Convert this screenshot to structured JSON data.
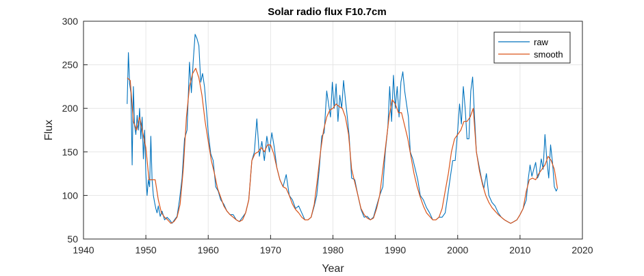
{
  "chart_data": {
    "type": "line",
    "title": "Solar radio flux F10.7cm",
    "xlabel": "Year",
    "ylabel": "Flux",
    "xlim": [
      1940,
      2020
    ],
    "ylim": [
      50,
      300
    ],
    "xticks": [
      "1940",
      "1950",
      "1960",
      "1970",
      "1980",
      "1990",
      "2000",
      "2010",
      "2020"
    ],
    "yticks": [
      "50",
      "100",
      "150",
      "200",
      "250",
      "300"
    ],
    "grid": true,
    "legend_position": "top-right",
    "series": [
      {
        "name": "raw",
        "color": "#0072BD",
        "x": [
          1947.0,
          1947.2,
          1947.4,
          1947.6,
          1947.8,
          1948.0,
          1948.2,
          1948.4,
          1948.6,
          1948.8,
          1949.0,
          1949.2,
          1949.4,
          1949.6,
          1949.8,
          1950.0,
          1950.2,
          1950.4,
          1950.6,
          1950.8,
          1951.0,
          1951.2,
          1951.4,
          1951.6,
          1951.8,
          1952.0,
          1952.3,
          1952.6,
          1953.0,
          1953.4,
          1953.8,
          1954.2,
          1954.6,
          1955.0,
          1955.4,
          1955.8,
          1956.2,
          1956.6,
          1957.0,
          1957.3,
          1957.6,
          1957.9,
          1958.2,
          1958.5,
          1958.8,
          1959.1,
          1959.4,
          1959.7,
          1960.0,
          1960.4,
          1960.8,
          1961.2,
          1961.6,
          1962.0,
          1962.5,
          1963.0,
          1963.5,
          1964.0,
          1964.5,
          1965.0,
          1965.5,
          1966.0,
          1966.5,
          1967.0,
          1967.4,
          1967.8,
          1968.2,
          1968.6,
          1969.0,
          1969.4,
          1969.8,
          1970.2,
          1970.6,
          1971.0,
          1971.5,
          1972.0,
          1972.5,
          1973.0,
          1973.5,
          1974.0,
          1974.5,
          1975.0,
          1975.5,
          1976.0,
          1976.5,
          1977.0,
          1977.4,
          1977.8,
          1978.2,
          1978.6,
          1979.0,
          1979.3,
          1979.6,
          1979.9,
          1980.2,
          1980.5,
          1980.8,
          1981.1,
          1981.4,
          1981.7,
          1982.0,
          1982.3,
          1982.6,
          1983.0,
          1983.5,
          1984.0,
          1984.5,
          1985.0,
          1985.5,
          1986.0,
          1986.5,
          1987.0,
          1987.5,
          1988.0,
          1988.4,
          1988.8,
          1989.1,
          1989.4,
          1989.7,
          1990.0,
          1990.3,
          1990.6,
          1990.9,
          1991.2,
          1991.5,
          1991.8,
          1992.1,
          1992.4,
          1992.8,
          1993.2,
          1993.6,
          1994.0,
          1994.5,
          1995.0,
          1995.5,
          1996.0,
          1996.5,
          1997.0,
          1997.5,
          1998.0,
          1998.4,
          1998.8,
          1999.2,
          1999.6,
          2000.0,
          2000.3,
          2000.6,
          2000.9,
          2001.2,
          2001.5,
          2001.8,
          2002.1,
          2002.4,
          2002.7,
          2003.0,
          2003.4,
          2003.8,
          2004.2,
          2004.6,
          2005.0,
          2005.5,
          2006.0,
          2006.5,
          2007.0,
          2007.5,
          2008.0,
          2008.5,
          2009.0,
          2009.5,
          2010.0,
          2010.5,
          2011.0,
          2011.3,
          2011.6,
          2011.9,
          2012.2,
          2012.5,
          2012.8,
          2013.1,
          2013.4,
          2013.7,
          2014.0,
          2014.3,
          2014.6,
          2014.9,
          2015.2,
          2015.5,
          2015.8,
          2016.0
        ],
        "y": [
          205,
          264,
          228,
          218,
          135,
          225,
          180,
          170,
          192,
          175,
          200,
          165,
          190,
          142,
          175,
          125,
          100,
          118,
          110,
          168,
          118,
          100,
          92,
          85,
          80,
          88,
          76,
          82,
          72,
          75,
          72,
          68,
          72,
          76,
          95,
          120,
          165,
          175,
          253,
          218,
          255,
          285,
          280,
          272,
          230,
          240,
          225,
          200,
          172,
          148,
          140,
          110,
          105,
          95,
          90,
          82,
          78,
          78,
          72,
          70,
          75,
          80,
          95,
          140,
          150,
          188,
          145,
          162,
          140,
          168,
          150,
          172,
          155,
          132,
          118,
          110,
          124,
          100,
          95,
          85,
          88,
          80,
          72,
          72,
          75,
          88,
          100,
          130,
          168,
          172,
          220,
          205,
          190,
          230,
          200,
          228,
          185,
          215,
          200,
          232,
          210,
          190,
          168,
          120,
          118,
          100,
          84,
          75,
          76,
          72,
          75,
          88,
          100,
          110,
          150,
          178,
          225,
          185,
          238,
          200,
          225,
          190,
          230,
          242,
          220,
          205,
          190,
          150,
          142,
          130,
          118,
          100,
          95,
          86,
          80,
          72,
          72,
          75,
          75,
          80,
          100,
          120,
          140,
          140,
          175,
          205,
          182,
          225,
          200,
          165,
          165,
          220,
          236,
          190,
          150,
          135,
          120,
          108,
          125,
          100,
          92,
          88,
          80,
          75,
          72,
          70,
          68,
          70,
          72,
          78,
          85,
          95,
          118,
          135,
          122,
          130,
          138,
          120,
          125,
          142,
          130,
          170,
          140,
          120,
          158,
          138,
          110,
          105,
          108
        ]
      },
      {
        "name": "smooth",
        "color": "#D95319",
        "x": [
          1947.0,
          1947.5,
          1948.0,
          1948.5,
          1949.0,
          1949.5,
          1950.0,
          1950.5,
          1951.0,
          1951.5,
          1952.0,
          1952.5,
          1953.0,
          1953.5,
          1954.0,
          1954.5,
          1955.0,
          1955.5,
          1956.0,
          1956.5,
          1957.0,
          1957.5,
          1958.0,
          1958.5,
          1959.0,
          1959.5,
          1960.0,
          1960.5,
          1961.0,
          1961.5,
          1962.0,
          1962.5,
          1963.0,
          1963.5,
          1964.0,
          1964.5,
          1965.0,
          1965.5,
          1966.0,
          1966.5,
          1967.0,
          1967.5,
          1968.0,
          1968.5,
          1969.0,
          1969.5,
          1970.0,
          1970.5,
          1971.0,
          1971.5,
          1972.0,
          1972.5,
          1973.0,
          1973.5,
          1974.0,
          1974.5,
          1975.0,
          1975.5,
          1976.0,
          1976.5,
          1977.0,
          1977.5,
          1978.0,
          1978.5,
          1979.0,
          1979.5,
          1980.0,
          1980.5,
          1981.0,
          1981.5,
          1982.0,
          1982.5,
          1983.0,
          1983.5,
          1984.0,
          1984.5,
          1985.0,
          1985.5,
          1986.0,
          1986.5,
          1987.0,
          1987.5,
          1988.0,
          1988.5,
          1989.0,
          1989.5,
          1990.0,
          1990.5,
          1991.0,
          1991.5,
          1992.0,
          1992.5,
          1993.0,
          1993.5,
          1994.0,
          1994.5,
          1995.0,
          1995.5,
          1996.0,
          1996.5,
          1997.0,
          1997.5,
          1998.0,
          1998.5,
          1999.0,
          1999.5,
          2000.0,
          2000.5,
          2001.0,
          2001.5,
          2002.0,
          2002.5,
          2003.0,
          2003.5,
          2004.0,
          2004.5,
          2005.0,
          2005.5,
          2006.0,
          2006.5,
          2007.0,
          2007.5,
          2008.0,
          2008.5,
          2009.0,
          2009.5,
          2010.0,
          2010.5,
          2011.0,
          2011.5,
          2012.0,
          2012.5,
          2013.0,
          2013.5,
          2014.0,
          2014.5,
          2015.0,
          2015.5,
          2016.0
        ],
        "y": [
          235,
          232,
          185,
          175,
          190,
          172,
          155,
          118,
          118,
          118,
          95,
          80,
          75,
          72,
          68,
          70,
          75,
          90,
          130,
          190,
          225,
          240,
          246,
          235,
          215,
          185,
          162,
          140,
          125,
          108,
          98,
          88,
          82,
          78,
          75,
          72,
          70,
          72,
          80,
          95,
          140,
          148,
          150,
          155,
          150,
          158,
          158,
          148,
          132,
          118,
          110,
          108,
          100,
          90,
          84,
          80,
          75,
          72,
          72,
          75,
          90,
          118,
          150,
          175,
          190,
          198,
          200,
          205,
          202,
          200,
          190,
          170,
          130,
          115,
          100,
          85,
          78,
          74,
          72,
          74,
          85,
          100,
          130,
          160,
          190,
          210,
          205,
          195,
          195,
          180,
          165,
          145,
          125,
          110,
          98,
          88,
          80,
          76,
          72,
          72,
          75,
          85,
          105,
          125,
          150,
          165,
          170,
          175,
          185,
          185,
          190,
          200,
          150,
          128,
          112,
          100,
          92,
          86,
          82,
          78,
          75,
          72,
          70,
          68,
          70,
          72,
          78,
          85,
          105,
          118,
          120,
          118,
          125,
          130,
          135,
          145,
          140,
          130,
          108
        ]
      }
    ]
  }
}
